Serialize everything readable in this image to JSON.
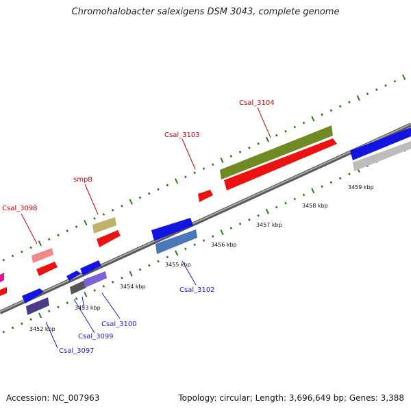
{
  "title": "Chromohalobacter salexigens DSM 3043, complete genome",
  "footer": {
    "accession": "Accession: NC_007963",
    "summary": "Topology: circular; Length: 3,696,649 bp; Genes: 3,388"
  },
  "scale_labels": [
    "3452 kbp",
    "3453 kbp",
    "3454 kbp",
    "3455 kbp",
    "3456 kbp",
    "3457 kbp",
    "3458 kbp",
    "3459 kbp"
  ],
  "gene_labels_top": [
    "Csal_3098",
    "smpB",
    "Csal_3103",
    "Csal_3104"
  ],
  "gene_labels_bottom": [
    "Csal_3097",
    "Csal_3099",
    "Csal_3100",
    "Csal_3102"
  ],
  "colors": {
    "backbone": "#888888",
    "tick": "#2a7a1a",
    "top_label": "#cc0000",
    "bottom_label": "#1a1ad0"
  }
}
